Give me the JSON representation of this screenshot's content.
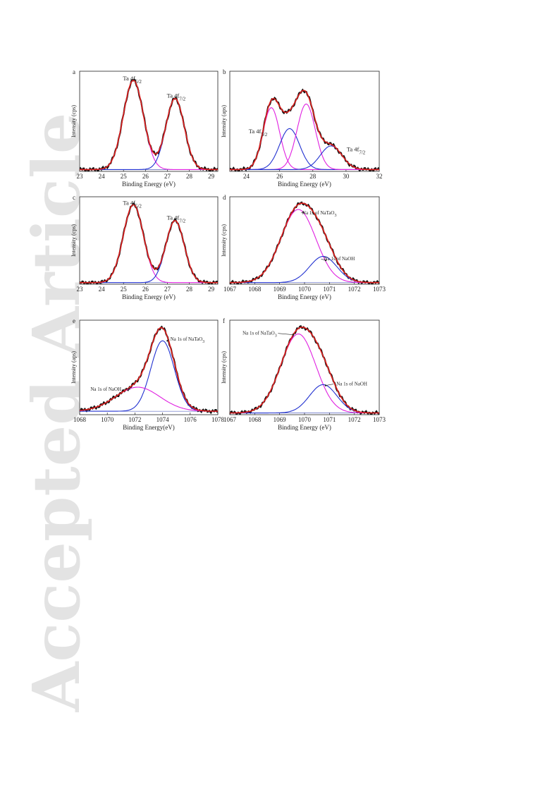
{
  "watermark": "Accepted Article",
  "chart_data": [
    {
      "id": "a",
      "type": "line",
      "panel_label": "a",
      "xlabel": "Binding Energy (eV)",
      "ylabel": "Intensity (cps)",
      "xlim": [
        23,
        29.3
      ],
      "ylim": [
        0,
        1.1
      ],
      "xticks": [
        23,
        24,
        25,
        26,
        27,
        28,
        29
      ],
      "annotations": [
        {
          "text": "Ta 4f5/2",
          "base": "Ta 4f",
          "sub": "5/2",
          "x": 25.4,
          "y": 1.0
        },
        {
          "text": "Ta 4f7/2",
          "base": "Ta 4f",
          "sub": "7/2",
          "x": 27.4,
          "y": 0.81
        }
      ],
      "series": [
        {
          "kind": "comp",
          "color": "#e020e0",
          "baseline": 0.02,
          "peaks": [
            [
              25.45,
              0.98,
              0.46
            ]
          ]
        },
        {
          "kind": "comp",
          "color": "#2030d0",
          "baseline": 0.02,
          "peaks": [
            [
              27.35,
              0.78,
              0.42
            ]
          ]
        },
        {
          "kind": "fit",
          "color": "#e0201e",
          "baseline": 0.02,
          "peaks": [
            [
              25.45,
              0.98,
              0.46
            ],
            [
              27.35,
              0.78,
              0.42
            ]
          ]
        }
      ]
    },
    {
      "id": "b",
      "type": "line",
      "panel_label": "b",
      "xlabel": "Binding Energy (eV)",
      "ylabel": "Intensity (aps)",
      "xlim": [
        23,
        32
      ],
      "ylim": [
        0,
        1.1
      ],
      "xticks": [
        24,
        26,
        28,
        30,
        32
      ],
      "annotations": [
        {
          "text": "Ta 4f5/2",
          "base": "Ta 4f",
          "sub": "5/2",
          "x": 24.7,
          "y": 0.42
        },
        {
          "text": "Ta 4f7/2",
          "base": "Ta 4f",
          "sub": "7/2",
          "x": 30.6,
          "y": 0.22
        }
      ],
      "series": [
        {
          "kind": "comp",
          "color": "#e020e0",
          "baseline": 0.02,
          "peaks": [
            [
              25.5,
              0.68,
              0.5
            ]
          ]
        },
        {
          "kind": "comp",
          "color": "#2030d0",
          "baseline": 0.02,
          "peaks": [
            [
              26.6,
              0.45,
              0.6
            ]
          ]
        },
        {
          "kind": "comp",
          "color": "#e020e0",
          "baseline": 0.02,
          "peaks": [
            [
              27.6,
              0.72,
              0.55
            ]
          ]
        },
        {
          "kind": "comp",
          "color": "#2030d0",
          "baseline": 0.02,
          "peaks": [
            [
              29.1,
              0.26,
              0.65
            ]
          ]
        },
        {
          "kind": "fit",
          "color": "#e0201e",
          "baseline": 0.02,
          "peaks": [
            [
              25.5,
              0.68,
              0.5
            ],
            [
              26.6,
              0.45,
              0.6
            ],
            [
              27.6,
              0.72,
              0.55
            ],
            [
              29.1,
              0.26,
              0.65
            ]
          ]
        }
      ]
    },
    {
      "id": "c",
      "type": "line",
      "panel_label": "c",
      "xlabel": "Binding Energy (eV)",
      "ylabel": "Intensity (cps)",
      "xlim": [
        23,
        29.3
      ],
      "ylim": [
        0,
        1.1
      ],
      "xticks": [
        23,
        24,
        25,
        26,
        27,
        28,
        29
      ],
      "annotations": [
        {
          "text": "Ta 4f5/2",
          "base": "Ta 4f",
          "sub": "5/2",
          "x": 25.4,
          "y": 1.0
        },
        {
          "text": "Ta 4f7/2",
          "base": "Ta 4f",
          "sub": "7/2",
          "x": 27.4,
          "y": 0.81
        }
      ],
      "series": [
        {
          "kind": "comp",
          "color": "#e020e0",
          "baseline": 0.02,
          "peaks": [
            [
              25.45,
              0.98,
              0.46
            ]
          ]
        },
        {
          "kind": "comp",
          "color": "#2030d0",
          "baseline": 0.02,
          "peaks": [
            [
              27.35,
              0.78,
              0.42
            ]
          ]
        },
        {
          "kind": "fit",
          "color": "#e0201e",
          "baseline": 0.02,
          "peaks": [
            [
              25.45,
              0.98,
              0.46
            ],
            [
              27.35,
              0.78,
              0.42
            ]
          ]
        }
      ]
    },
    {
      "id": "d",
      "type": "line",
      "panel_label": "d",
      "xlabel": "Binding Energy (eV)",
      "ylabel": "Intensity (cps)",
      "xlim": [
        1067,
        1073
      ],
      "ylim": [
        0,
        1.1
      ],
      "xticks": [
        1067,
        1068,
        1069,
        1070,
        1071,
        1072,
        1073
      ],
      "annotations": [
        {
          "text": "Na 1s of NaTaO3",
          "base": "Na 1s of NaTaO",
          "sub": "3",
          "x": 1070.6,
          "y": 0.88,
          "arrow_to": [
            1069.95,
            0.9
          ]
        },
        {
          "text": "Na 1s of NaOH",
          "base": "Na 1s of NaOH",
          "sub": "",
          "x": 1071.4,
          "y": 0.3,
          "arrow_to": [
            1070.85,
            0.3
          ]
        }
      ],
      "series": [
        {
          "kind": "comp",
          "color": "#e020e0",
          "baseline": 0.02,
          "peaks": [
            [
              1069.75,
              0.92,
              0.7
            ]
          ]
        },
        {
          "kind": "comp",
          "color": "#2030d0",
          "baseline": 0.02,
          "peaks": [
            [
              1070.75,
              0.33,
              0.55
            ]
          ]
        },
        {
          "kind": "fit",
          "color": "#e0201e",
          "baseline": 0.02,
          "peaks": [
            [
              1069.75,
              0.92,
              0.7
            ],
            [
              1070.75,
              0.33,
              0.55
            ]
          ]
        }
      ]
    },
    {
      "id": "e",
      "type": "line",
      "panel_label": "e",
      "xlabel": "Binding Energy(eV)",
      "ylabel": "Intensity (aps)",
      "xlim": [
        1068,
        1078
      ],
      "ylim": [
        0,
        1.1
      ],
      "xticks": [
        1068,
        1070,
        1072,
        1074,
        1076,
        1078
      ],
      "annotations": [
        {
          "text": "Na 1s of NaTaO3",
          "base": "Na 1s of NaTaO",
          "sub": "3",
          "x": 1075.8,
          "y": 0.86,
          "arrow_to": [
            1074.35,
            0.86
          ]
        },
        {
          "text": "Na 1s of NaOH",
          "base": "Na 1s of NaOH",
          "sub": "",
          "x": 1069.9,
          "y": 0.28,
          "arrow_to": [
            1071.6,
            0.3
          ]
        }
      ],
      "series": [
        {
          "kind": "comp",
          "color": "#2030d0",
          "baseline": 0.04,
          "peaks": [
            [
              1074.0,
              0.82,
              0.85
            ]
          ]
        },
        {
          "kind": "comp",
          "color": "#e020e0",
          "baseline": 0.04,
          "peaks": [
            [
              1072.2,
              0.28,
              1.6
            ]
          ]
        },
        {
          "kind": "fit",
          "color": "#e0201e",
          "baseline": 0.04,
          "peaks": [
            [
              1074.0,
              0.82,
              0.85
            ],
            [
              1072.2,
              0.28,
              1.6
            ]
          ]
        }
      ]
    },
    {
      "id": "f",
      "type": "line",
      "panel_label": "f",
      "xlabel": "Binding Energy (eV)",
      "ylabel": "Intensity (cps)",
      "xlim": [
        1067,
        1073
      ],
      "ylim": [
        0,
        1.1
      ],
      "xticks": [
        1067,
        1068,
        1069,
        1070,
        1071,
        1072,
        1073
      ],
      "annotations": [
        {
          "text": "Na 1s of NaTaO3",
          "base": "Na 1s of NaTaO",
          "sub": "3",
          "x": 1068.2,
          "y": 0.93,
          "arrow_to": [
            1069.55,
            0.93
          ]
        },
        {
          "text": "Na 1s of NaOH",
          "base": "Na 1s of NaOH",
          "sub": "",
          "x": 1071.9,
          "y": 0.34,
          "arrow_to": [
            1070.85,
            0.34
          ]
        }
      ],
      "series": [
        {
          "kind": "comp",
          "color": "#e020e0",
          "baseline": 0.02,
          "peaks": [
            [
              1069.75,
              0.92,
              0.7
            ]
          ]
        },
        {
          "kind": "comp",
          "color": "#2030d0",
          "baseline": 0.02,
          "peaks": [
            [
              1070.75,
              0.33,
              0.55
            ]
          ]
        },
        {
          "kind": "fit",
          "color": "#e0201e",
          "baseline": 0.02,
          "peaks": [
            [
              1069.75,
              0.92,
              0.7
            ],
            [
              1070.75,
              0.33,
              0.55
            ]
          ]
        }
      ]
    }
  ]
}
